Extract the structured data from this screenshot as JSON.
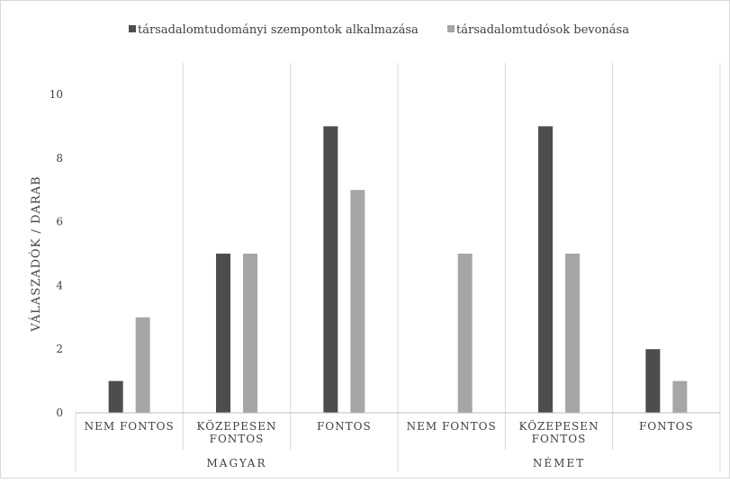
{
  "chart_data": {
    "type": "bar",
    "groups": [
      {
        "label": "MAGYAR",
        "categories": [
          "NEM FONTOS",
          "KÖZEPESEN FONTOS",
          "FONTOS"
        ]
      },
      {
        "label": "NÉMET",
        "categories": [
          "NEM FONTOS",
          "KÖZEPESEN FONTOS",
          "FONTOS"
        ]
      }
    ],
    "categories": [
      [
        "NEM FONTOS"
      ],
      [
        "KÖZEPESEN",
        "FONTOS"
      ],
      [
        "FONTOS"
      ],
      [
        "NEM FONTOS"
      ],
      [
        "KÖZEPESEN",
        "FONTOS"
      ],
      [
        "FONTOS"
      ]
    ],
    "series": [
      {
        "name": "társadalomtudományi szempontok alkalmazása",
        "color": "#4d4d4d",
        "values": [
          1,
          5,
          9,
          0,
          9,
          2
        ]
      },
      {
        "name": "társadalomtudósok bevonása",
        "color": "#a6a6a6",
        "values": [
          3,
          5,
          7,
          5,
          5,
          1
        ]
      }
    ],
    "ylabel": "VÁLASZADÓK / DARAB",
    "ylim": [
      0,
      10
    ],
    "yticks": [
      0,
      2,
      4,
      6,
      8,
      10
    ],
    "grid": "vertical separators",
    "legend_position": "top"
  }
}
